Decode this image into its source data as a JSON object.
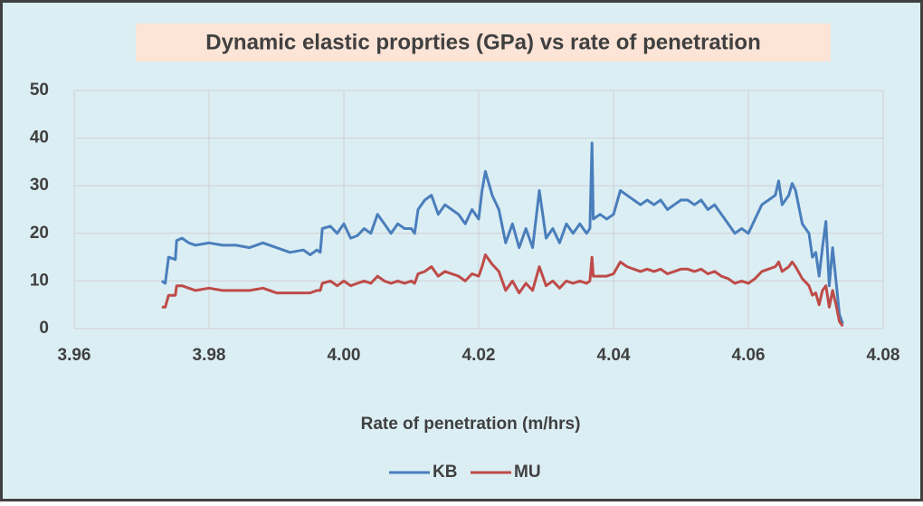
{
  "chart_data": {
    "type": "line",
    "title": "Dynamic elastic proprties (GPa) vs rate of penetration",
    "x_label": "Rate of penetration (m/hrs)",
    "x": [
      3.973,
      3.9735,
      3.974,
      3.975,
      3.9752,
      3.976,
      3.977,
      3.978,
      3.98,
      3.982,
      3.984,
      3.986,
      3.988,
      3.99,
      3.992,
      3.994,
      3.995,
      3.996,
      3.9965,
      3.9968,
      3.998,
      3.999,
      4.0,
      4.001,
      4.002,
      4.003,
      4.004,
      4.005,
      4.006,
      4.007,
      4.008,
      4.009,
      4.01,
      4.0105,
      4.011,
      4.012,
      4.013,
      4.014,
      4.015,
      4.016,
      4.017,
      4.018,
      4.019,
      4.02,
      4.0205,
      4.021,
      4.022,
      4.023,
      4.024,
      4.025,
      4.026,
      4.027,
      4.028,
      4.029,
      4.03,
      4.031,
      4.032,
      4.033,
      4.034,
      4.035,
      4.036,
      4.0365,
      4.0368,
      4.037,
      4.038,
      4.039,
      4.04,
      4.041,
      4.042,
      4.043,
      4.044,
      4.045,
      4.046,
      4.047,
      4.048,
      4.049,
      4.05,
      4.051,
      4.052,
      4.053,
      4.054,
      4.055,
      4.056,
      4.057,
      4.058,
      4.059,
      4.06,
      4.061,
      4.062,
      4.063,
      4.064,
      4.0645,
      4.065,
      4.066,
      4.0665,
      4.067,
      4.068,
      4.069,
      4.0695,
      4.07,
      4.0705,
      4.071,
      4.0715,
      4.072,
      4.0725,
      4.073,
      4.0735,
      4.074
    ],
    "series": [
      {
        "name": "KB",
        "color": "#4a7ebb",
        "values": [
          10,
          9.5,
          15,
          14.5,
          18.5,
          19,
          18,
          17.5,
          18,
          17.5,
          17.5,
          17,
          18,
          17,
          16,
          16.5,
          15.5,
          16.5,
          16,
          21,
          21.5,
          20,
          22,
          19,
          19.5,
          21,
          20,
          24,
          22,
          20,
          22,
          21,
          21,
          20,
          25,
          27,
          28,
          24,
          26,
          25,
          24,
          22,
          25,
          23,
          29,
          33,
          28,
          25,
          18,
          22,
          17,
          21,
          17,
          29,
          19,
          21,
          18,
          22,
          20,
          22,
          20,
          21,
          39,
          23,
          24,
          23,
          24,
          29,
          28,
          27,
          26,
          27,
          26,
          27,
          25,
          26,
          27,
          27,
          26,
          27,
          25,
          26,
          24,
          22,
          20,
          21,
          20,
          23,
          26,
          27,
          28,
          31,
          26,
          28,
          30.5,
          29,
          22,
          20,
          15,
          16,
          11,
          17,
          22.5,
          9,
          17,
          10,
          3,
          1
        ]
      },
      {
        "name": "MU",
        "color": "#be4b48",
        "values": [
          4.5,
          4.5,
          7,
          7,
          9,
          9,
          8.5,
          8,
          8.5,
          8,
          8,
          8,
          8.5,
          7.5,
          7.5,
          7.5,
          7.5,
          8,
          8,
          9.5,
          10,
          9,
          10,
          9,
          9.5,
          10,
          9.5,
          11,
          10,
          9.5,
          10,
          9.5,
          10,
          9.5,
          11.5,
          12,
          13,
          11,
          12,
          11.5,
          11,
          10,
          11.5,
          11,
          13,
          15.5,
          13.5,
          12,
          8,
          10,
          7.5,
          9.5,
          8,
          13,
          9,
          10,
          8.5,
          10,
          9.5,
          10,
          9.5,
          10,
          15,
          11,
          11,
          11,
          11.5,
          14,
          13,
          12.5,
          12,
          12.5,
          12,
          12.5,
          11.5,
          12,
          12.5,
          12.5,
          12,
          12.5,
          11.5,
          12,
          11,
          10.5,
          9.5,
          10,
          9.5,
          10.5,
          12,
          12.5,
          13,
          14,
          12,
          13,
          14,
          13,
          10.5,
          9,
          7,
          7.5,
          5,
          8,
          9,
          4.5,
          8,
          5,
          1.5,
          0.5
        ]
      }
    ],
    "xlim": [
      3.96,
      4.08
    ],
    "xticks": [
      3.96,
      3.98,
      {
        "value": 4,
        "label": "4.00"
      },
      4.02,
      4.04,
      4.06,
      4.08
    ],
    "ylim": [
      0,
      50
    ],
    "yticks": [
      0,
      10,
      20,
      30,
      40,
      50
    ],
    "grid": true,
    "legend": "bottom"
  }
}
